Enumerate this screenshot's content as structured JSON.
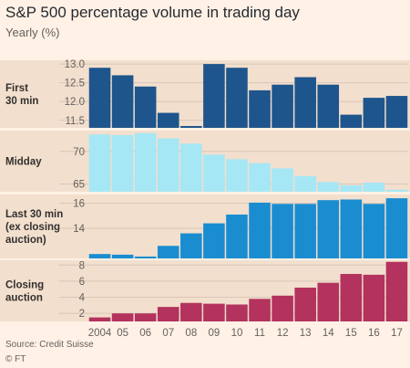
{
  "title": "S&P 500 percentage volume in trading day",
  "subtitle": "Yearly (%)",
  "source": "Source: Credit Suisse",
  "credit": "© FT",
  "chart_data": [
    {
      "type": "bar",
      "label": "First 30 min",
      "label_lines": [
        "First",
        "30 min"
      ],
      "color": "#1e558c",
      "ylim": [
        11.3,
        13.1
      ],
      "yticks": [
        11.5,
        12.0,
        12.5,
        13.0
      ],
      "ytick_labels": [
        "11.5",
        "12.0",
        "12.5",
        "13.0"
      ],
      "categories": [
        "2004",
        "05",
        "06",
        "07",
        "08",
        "09",
        "10",
        "11",
        "12",
        "13",
        "14",
        "15",
        "16",
        "17"
      ],
      "values": [
        12.9,
        12.7,
        12.4,
        11.7,
        11.3,
        13.0,
        12.9,
        12.3,
        12.45,
        12.65,
        12.45,
        11.65,
        12.1,
        12.15
      ]
    },
    {
      "type": "bar",
      "label": "Midday",
      "label_lines": [
        "Midday"
      ],
      "color": "#a6e7f5",
      "ylim": [
        63.8,
        73.2
      ],
      "yticks": [
        65,
        70
      ],
      "ytick_labels": [
        "65",
        "70"
      ],
      "categories": [
        "2004",
        "05",
        "06",
        "07",
        "08",
        "09",
        "10",
        "11",
        "12",
        "13",
        "14",
        "15",
        "16",
        "17"
      ],
      "values": [
        72.6,
        72.5,
        72.8,
        72.0,
        71.2,
        69.5,
        68.8,
        68.2,
        67.4,
        66.2,
        65.3,
        64.8,
        65.2,
        64.1
      ]
    },
    {
      "type": "bar",
      "label": "Last 30 min (ex closing auction)",
      "label_lines": [
        "Last 30 min",
        "(ex closing",
        "auction)"
      ],
      "color": "#1a8dd0",
      "ylim": [
        11.6,
        16.7
      ],
      "yticks": [
        14,
        16
      ],
      "ytick_labels": [
        "14",
        "16"
      ],
      "categories": [
        "2004",
        "05",
        "06",
        "07",
        "08",
        "09",
        "10",
        "11",
        "12",
        "13",
        "14",
        "15",
        "16",
        "17"
      ],
      "values": [
        11.95,
        11.9,
        11.75,
        12.6,
        13.6,
        14.4,
        15.1,
        16.05,
        15.95,
        15.95,
        16.25,
        16.3,
        15.95,
        16.4
      ]
    },
    {
      "type": "bar",
      "label": "Closing auction",
      "label_lines": [
        "Closing",
        "auction"
      ],
      "color": "#b3325e",
      "ylim": [
        1.0,
        8.6
      ],
      "yticks": [
        2,
        4,
        6,
        8
      ],
      "ytick_labels": [
        "2",
        "4",
        "6",
        "8"
      ],
      "categories": [
        "2004",
        "05",
        "06",
        "07",
        "08",
        "09",
        "10",
        "11",
        "12",
        "13",
        "14",
        "15",
        "16",
        "17"
      ],
      "values": [
        1.5,
        2.0,
        2.0,
        2.8,
        3.3,
        3.2,
        3.1,
        3.8,
        4.2,
        5.2,
        5.8,
        6.9,
        6.8,
        8.4
      ]
    }
  ],
  "x_tick_labels": [
    "2004",
    "05",
    "06",
    "07",
    "08",
    "09",
    "10",
    "11",
    "12",
    "13",
    "14",
    "15",
    "16",
    "17"
  ]
}
